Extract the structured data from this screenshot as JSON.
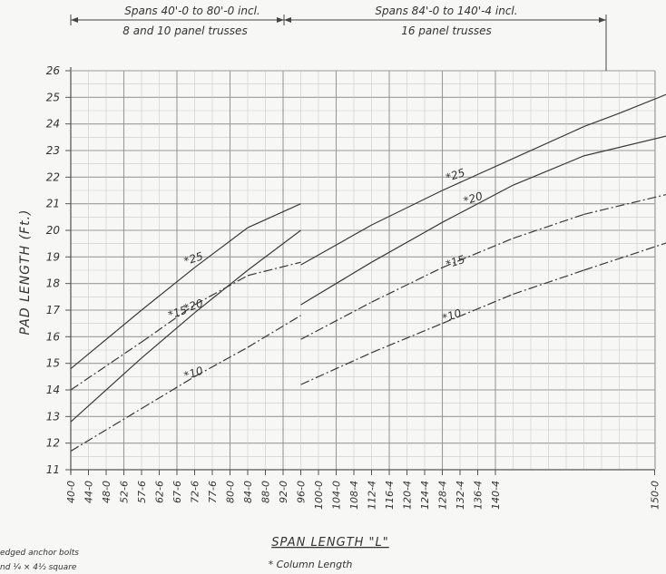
{
  "chart_data": {
    "type": "line",
    "title": "",
    "xlabel": "SPAN LENGTH \"L\"",
    "ylabel": "PAD LENGTH (Ft.)",
    "ylim": [
      11,
      26
    ],
    "yticks": [
      "11",
      "12",
      "13",
      "14",
      "15",
      "16",
      "17",
      "18",
      "19",
      "20",
      "21",
      "22",
      "23",
      "24",
      "25",
      "26"
    ],
    "xticks": [
      "40-0",
      "44-0",
      "48-0",
      "52-6",
      "57-6",
      "62-6",
      "67-6",
      "72-6",
      "77-6",
      "80-0",
      "84-0",
      "88-0",
      "92-0",
      "96-0",
      "100-0",
      "104-0",
      "108-4",
      "112-4",
      "116-4",
      "120-4",
      "124-4",
      "128-4",
      "132-4",
      "136-4",
      "140-4",
      "150-0"
    ],
    "bracket_left": {
      "line1": "Spans 40'-0 to 80'-0 incl.",
      "line2": "8 and 10 panel trusses"
    },
    "bracket_right": {
      "line1": "Spans 84'-0 to 140'-4 incl.",
      "line2": "16 panel trusses"
    },
    "footnote": "* Column Length",
    "side_note_1": "edged anchor bolts",
    "side_note_2": "nd ¼ × 4½ square",
    "series": [
      {
        "name": "*25",
        "segments": [
          {
            "x": [
              0,
              4
            ],
            "y": [
              14.8,
              17.0
            ]
          },
          {
            "x": [
              4,
              7
            ],
            "y": [
              17.0,
              18.6
            ]
          },
          {
            "x": [
              7,
              10
            ],
            "y": [
              18.6,
              20.1
            ]
          },
          {
            "x": [
              10,
              13
            ],
            "y": [
              20.1,
              21.0
            ]
          },
          {
            "x": [
              13,
              17
            ],
            "y": [
              18.7,
              20.2
            ]
          },
          {
            "x": [
              17,
              21
            ],
            "y": [
              20.2,
              21.5
            ]
          },
          {
            "x": [
              21,
              25
            ],
            "y": [
              21.5,
              22.7
            ]
          },
          {
            "x": [
              25,
              29
            ],
            "y": [
              22.7,
              23.9
            ]
          },
          {
            "x": [
              29,
              31
            ],
            "y": [
              23.9,
              24.4
            ]
          },
          {
            "x": [
              31,
              34
            ],
            "y": [
              24.4,
              25.2
            ]
          }
        ]
      },
      {
        "name": "*20",
        "segments": [
          {
            "x": [
              0,
              4
            ],
            "y": [
              12.8,
              15.2
            ]
          },
          {
            "x": [
              4,
              7
            ],
            "y": [
              15.2,
              16.9
            ]
          },
          {
            "x": [
              7,
              10
            ],
            "y": [
              16.9,
              18.5
            ]
          },
          {
            "x": [
              10,
              13
            ],
            "y": [
              18.5,
              20.0
            ]
          },
          {
            "x": [
              13,
              17
            ],
            "y": [
              17.2,
              18.8
            ]
          },
          {
            "x": [
              17,
              21
            ],
            "y": [
              18.8,
              20.3
            ]
          },
          {
            "x": [
              21,
              25
            ],
            "y": [
              20.3,
              21.7
            ]
          },
          {
            "x": [
              25,
              29
            ],
            "y": [
              21.7,
              22.8
            ]
          },
          {
            "x": [
              29,
              34
            ],
            "y": [
              22.8,
              23.6
            ]
          }
        ]
      },
      {
        "name": "*15",
        "dashed": true,
        "segments": [
          {
            "x": [
              0,
              4
            ],
            "y": [
              14.0,
              15.8
            ]
          },
          {
            "x": [
              4,
              7
            ],
            "y": [
              15.8,
              17.2
            ]
          },
          {
            "x": [
              7,
              10
            ],
            "y": [
              17.2,
              18.3
            ]
          },
          {
            "x": [
              10,
              13
            ],
            "y": [
              18.3,
              18.8
            ]
          },
          {
            "x": [
              13,
              17
            ],
            "y": [
              15.9,
              17.3
            ]
          },
          {
            "x": [
              17,
              21
            ],
            "y": [
              17.3,
              18.6
            ]
          },
          {
            "x": [
              21,
              25
            ],
            "y": [
              18.6,
              19.7
            ]
          },
          {
            "x": [
              25,
              29
            ],
            "y": [
              19.7,
              20.6
            ]
          },
          {
            "x": [
              29,
              34
            ],
            "y": [
              20.6,
              21.4
            ]
          }
        ]
      },
      {
        "name": "*10",
        "dashed": true,
        "segments": [
          {
            "x": [
              0,
              4
            ],
            "y": [
              11.7,
              13.3
            ]
          },
          {
            "x": [
              4,
              7
            ],
            "y": [
              13.3,
              14.5
            ]
          },
          {
            "x": [
              7,
              10
            ],
            "y": [
              14.5,
              15.6
            ]
          },
          {
            "x": [
              10,
              13
            ],
            "y": [
              15.6,
              16.8
            ]
          },
          {
            "x": [
              13,
              17
            ],
            "y": [
              14.2,
              15.4
            ]
          },
          {
            "x": [
              17,
              21
            ],
            "y": [
              15.4,
              16.5
            ]
          },
          {
            "x": [
              21,
              25
            ],
            "y": [
              16.5,
              17.6
            ]
          },
          {
            "x": [
              25,
              29
            ],
            "y": [
              17.6,
              18.5
            ]
          },
          {
            "x": [
              29,
              34
            ],
            "y": [
              18.5,
              19.6
            ]
          }
        ]
      }
    ]
  }
}
